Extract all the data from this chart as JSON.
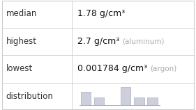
{
  "rows": [
    {
      "label": "median",
      "value": "1.78 g/cm³",
      "note": ""
    },
    {
      "label": "highest",
      "value": "2.7 g/cm³",
      "note": "(aluminum)"
    },
    {
      "label": "lowest",
      "value": "0.001784 g/cm³",
      "note": "(argon)"
    },
    {
      "label": "distribution",
      "value": "",
      "note": ""
    }
  ],
  "hist_bars": [
    0.72,
    0.42,
    0.0,
    1.0,
    0.42,
    0.42
  ],
  "bar_color": "#cdd0dc",
  "bar_edge_color": "#aab0c0",
  "bg_color": "#ffffff",
  "grid_color": "#cccccc",
  "label_color": "#333333",
  "value_color": "#111111",
  "note_color": "#aaaaaa",
  "col_split": 0.365,
  "label_fontsize": 8.5,
  "value_fontsize": 9.0,
  "note_fontsize": 7.5,
  "row_tops": [
    1.0,
    0.75,
    0.5,
    0.25
  ],
  "row_bots": [
    0.75,
    0.5,
    0.25,
    0.0
  ]
}
